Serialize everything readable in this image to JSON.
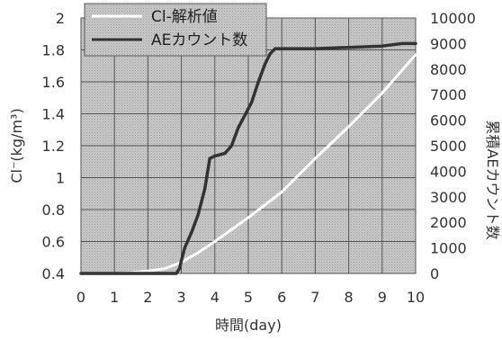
{
  "chart_data": {
    "type": "line",
    "xlabel": "時間(day)",
    "ylabel_left": "Cl⁻(kg/m³)",
    "ylabel_right": "累積AEカウント数",
    "xlim": [
      0,
      10
    ],
    "ylim_left": [
      0.4,
      2.0
    ],
    "ylim_right": [
      0,
      10000
    ],
    "x_ticks": [
      0,
      1,
      2,
      3,
      4,
      5,
      6,
      7,
      8,
      9,
      10
    ],
    "y_left_ticks": [
      "0.4",
      "0.6",
      "0.8",
      "1",
      "1.2",
      "1.4",
      "1.6",
      "1.8",
      "2"
    ],
    "y_left_tick_values": [
      0.4,
      0.6,
      0.8,
      1.0,
      1.2,
      1.4,
      1.6,
      1.8,
      2.0
    ],
    "y_right_ticks": [
      "0",
      "1000",
      "2000",
      "3000",
      "4000",
      "5000",
      "6000",
      "7000",
      "8000",
      "9000",
      "10000"
    ],
    "y_right_tick_values": [
      0,
      1000,
      2000,
      3000,
      4000,
      5000,
      6000,
      7000,
      8000,
      9000,
      10000
    ],
    "grid": true,
    "legend_position": "top-left",
    "series": [
      {
        "name": "Cl-解析値",
        "axis": "left",
        "color": "#ffffff",
        "x": [
          0,
          1,
          1.5,
          2,
          2.5,
          3,
          3.5,
          4,
          5,
          6,
          7,
          8,
          9,
          10
        ],
        "y": [
          0.4,
          0.4,
          0.405,
          0.415,
          0.43,
          0.47,
          0.53,
          0.6,
          0.75,
          0.91,
          1.12,
          1.32,
          1.53,
          1.77
        ]
      },
      {
        "name": "AEカウント数",
        "axis": "right",
        "color": "#333333",
        "x": [
          0,
          2.85,
          2.95,
          3.0,
          3.1,
          3.3,
          3.5,
          3.7,
          3.85,
          4.0,
          4.3,
          4.5,
          4.7,
          4.9,
          5.1,
          5.3,
          5.5,
          5.65,
          5.8,
          6.0,
          7,
          8,
          9,
          9.6,
          10
        ],
        "y": [
          0,
          0,
          200,
          500,
          1000,
          1600,
          2300,
          3300,
          4500,
          4600,
          4700,
          5000,
          5700,
          6200,
          6700,
          7500,
          8200,
          8600,
          8800,
          8800,
          8800,
          8850,
          8900,
          9000,
          9000
        ]
      }
    ]
  }
}
